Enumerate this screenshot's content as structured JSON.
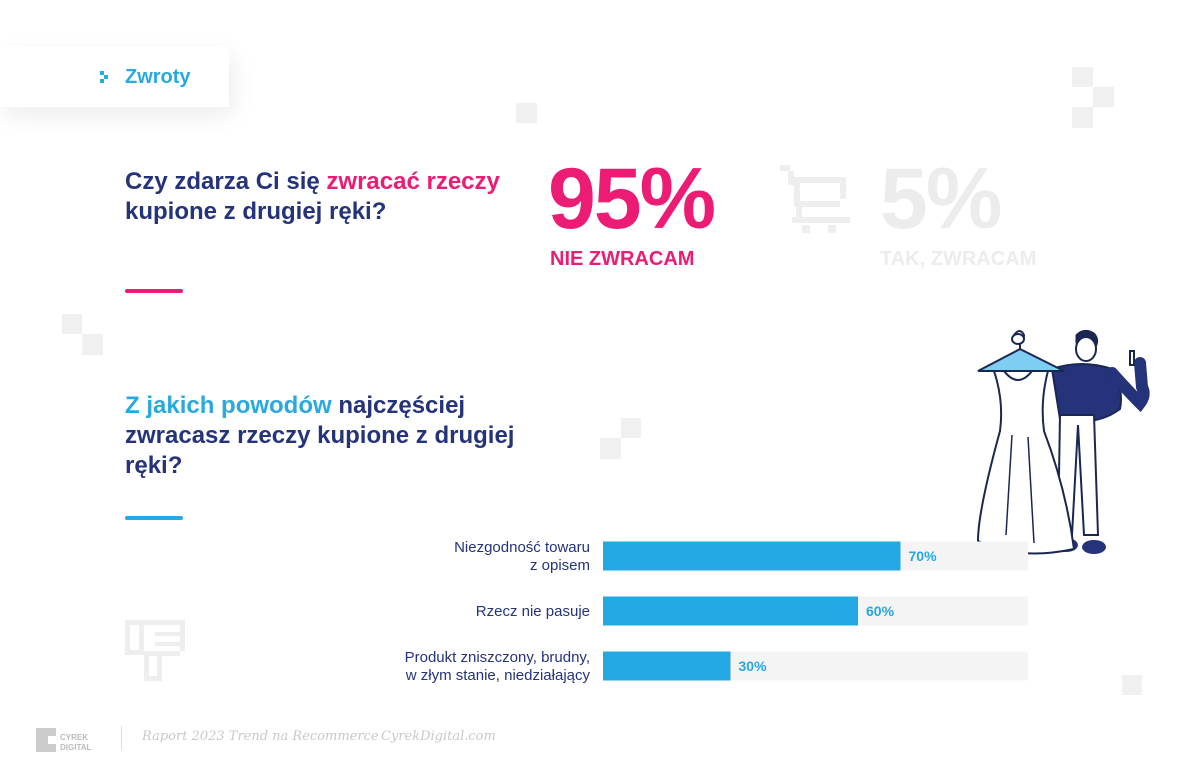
{
  "section_tab": {
    "label": "Zwroty",
    "icon": "pixel-arrow-icon",
    "color": "#28a9e0"
  },
  "question1": {
    "part1": "Czy zdarza Ci się ",
    "highlight": "zwracać rzeczy",
    "part2": " kupione z drugiej ręki?",
    "highlight_color": "#ec1c75"
  },
  "stats": {
    "no": {
      "value": "95%",
      "label": "NIE ZWRACAM",
      "color": "#ec1c75"
    },
    "yes": {
      "value": "5%",
      "label": "TAK, ZWRACAM",
      "color": "#ececec"
    },
    "icon": "shopping-cart-icon"
  },
  "question2": {
    "highlight": "Z jakich powodów",
    "part2": " najczęściej zwracasz rzeczy kupione z drugiej ręki?",
    "highlight_color": "#28a9e0"
  },
  "chart_data": {
    "type": "bar",
    "orientation": "horizontal",
    "categories": [
      [
        "Niezgodność towaru",
        "z opisem"
      ],
      [
        "Rzecz nie pasuje"
      ],
      [
        "Produkt zniszczony, brudny,",
        "w złym stanie, niedziałający"
      ]
    ],
    "values": [
      70,
      60,
      30
    ],
    "value_labels": [
      "70%",
      "60%",
      "30%"
    ],
    "xlim": [
      0,
      100
    ],
    "bar_color": "#23a8e3",
    "track_color": "#f4f4f4",
    "label_color": "#24337a",
    "grid": false
  },
  "decor": {
    "thumb_icon": "thumbs-down-icon",
    "illustration": "person-holding-dress-illustration"
  },
  "footer": {
    "logo_text": [
      "CYREK",
      "DIGITAL"
    ],
    "report": "Raport 2023 Trend na Recommerce",
    "url": "CyrekDigital.com"
  },
  "colors": {
    "navy": "#24337a",
    "pink": "#ec1c75",
    "blue": "#28a9e0"
  }
}
